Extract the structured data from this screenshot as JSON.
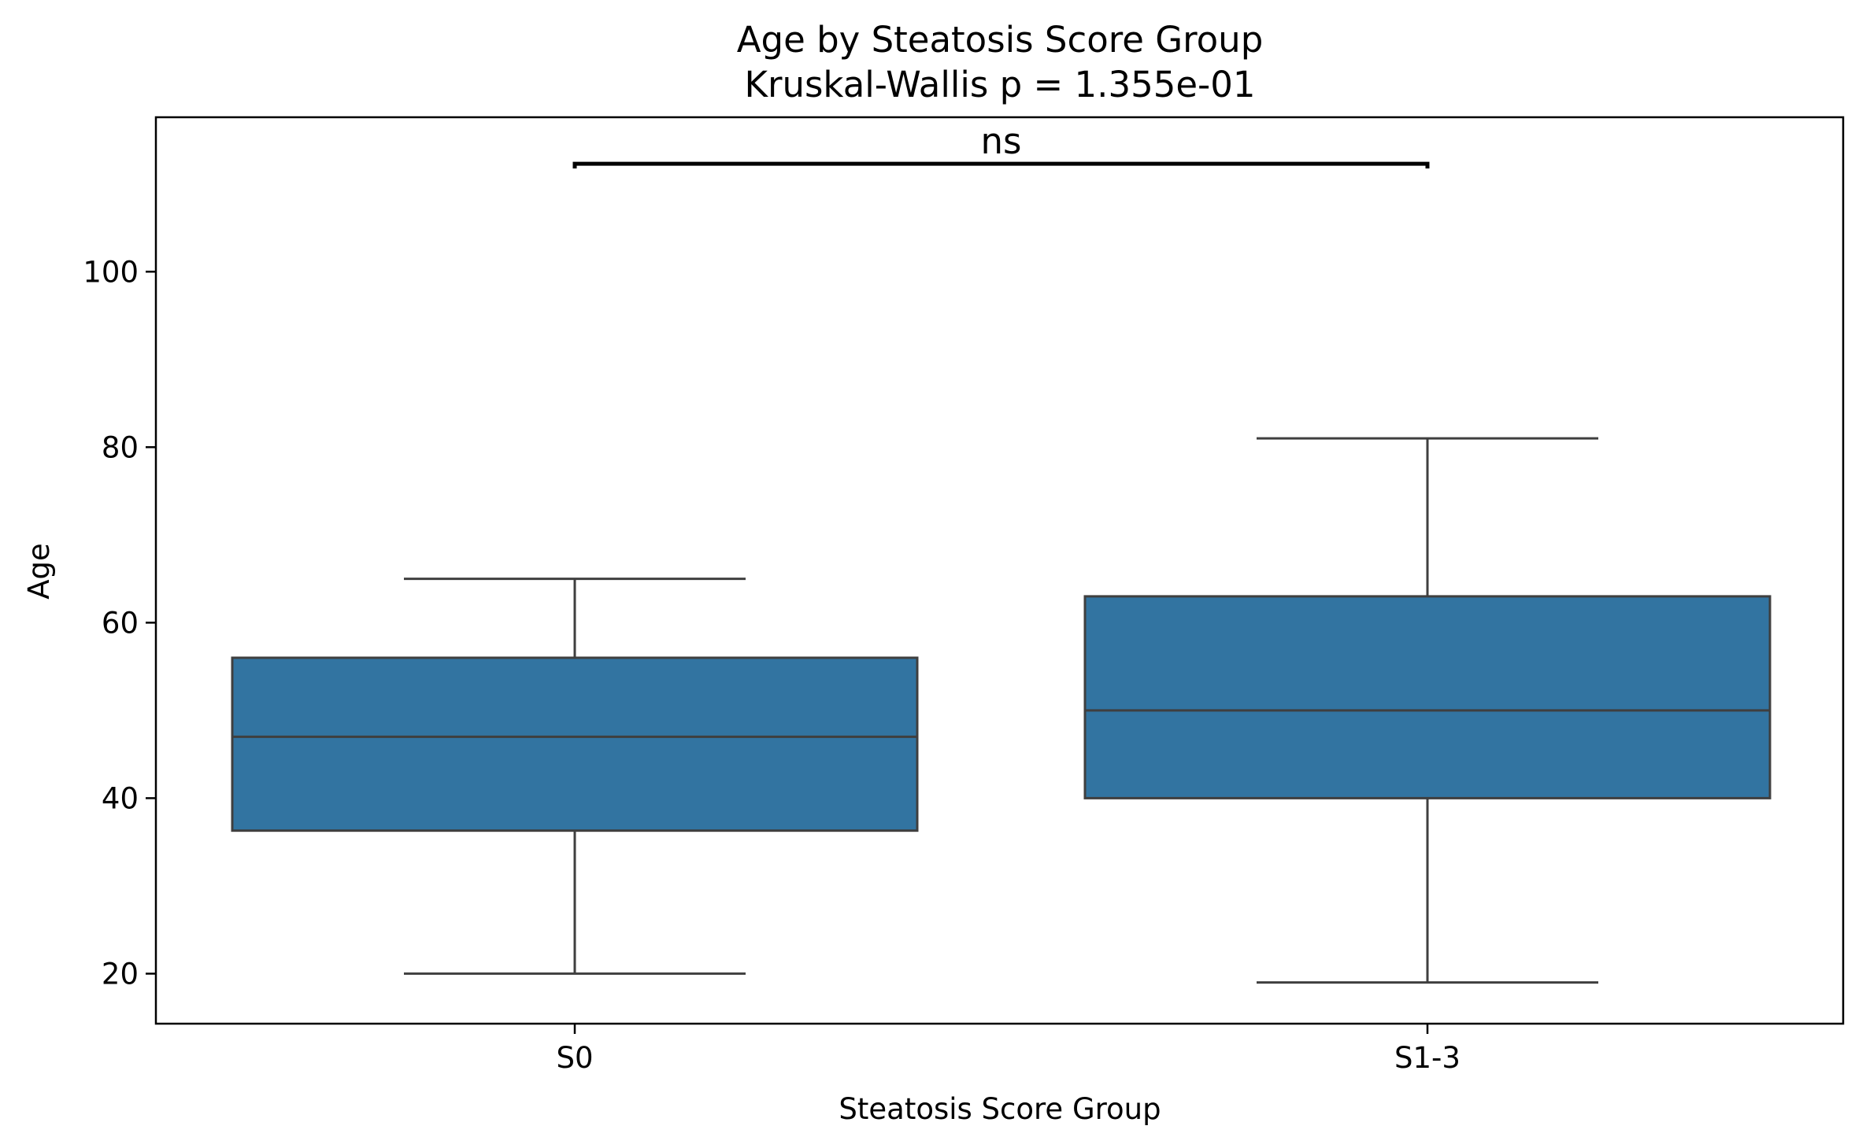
{
  "chart_data": {
    "type": "box",
    "title": "Age by Steatosis Score Group",
    "subtitle": "Kruskal-Wallis p = 1.355e-01",
    "xlabel": "Steatosis Score Group",
    "ylabel": "Age",
    "categories": [
      "S0",
      "S1-3"
    ],
    "boxes": [
      {
        "category": "S0",
        "whisker_low": 20,
        "q1": 36.3,
        "median": 47,
        "q3": 56,
        "whisker_high": 65
      },
      {
        "category": "S1-3",
        "whisker_low": 19,
        "q1": 40,
        "median": 50,
        "q3": 63,
        "whisker_high": 81
      }
    ],
    "ylim": [
      14.3,
      117.6
    ],
    "yticks": [
      20,
      40,
      60,
      80,
      100
    ],
    "box_color": "#3274a1",
    "edge_color": "#3f3f3f",
    "annotation": {
      "text": "ns",
      "from": "S0",
      "to": "S1-3",
      "y": 112.3
    },
    "grid": false,
    "legend": "none"
  }
}
